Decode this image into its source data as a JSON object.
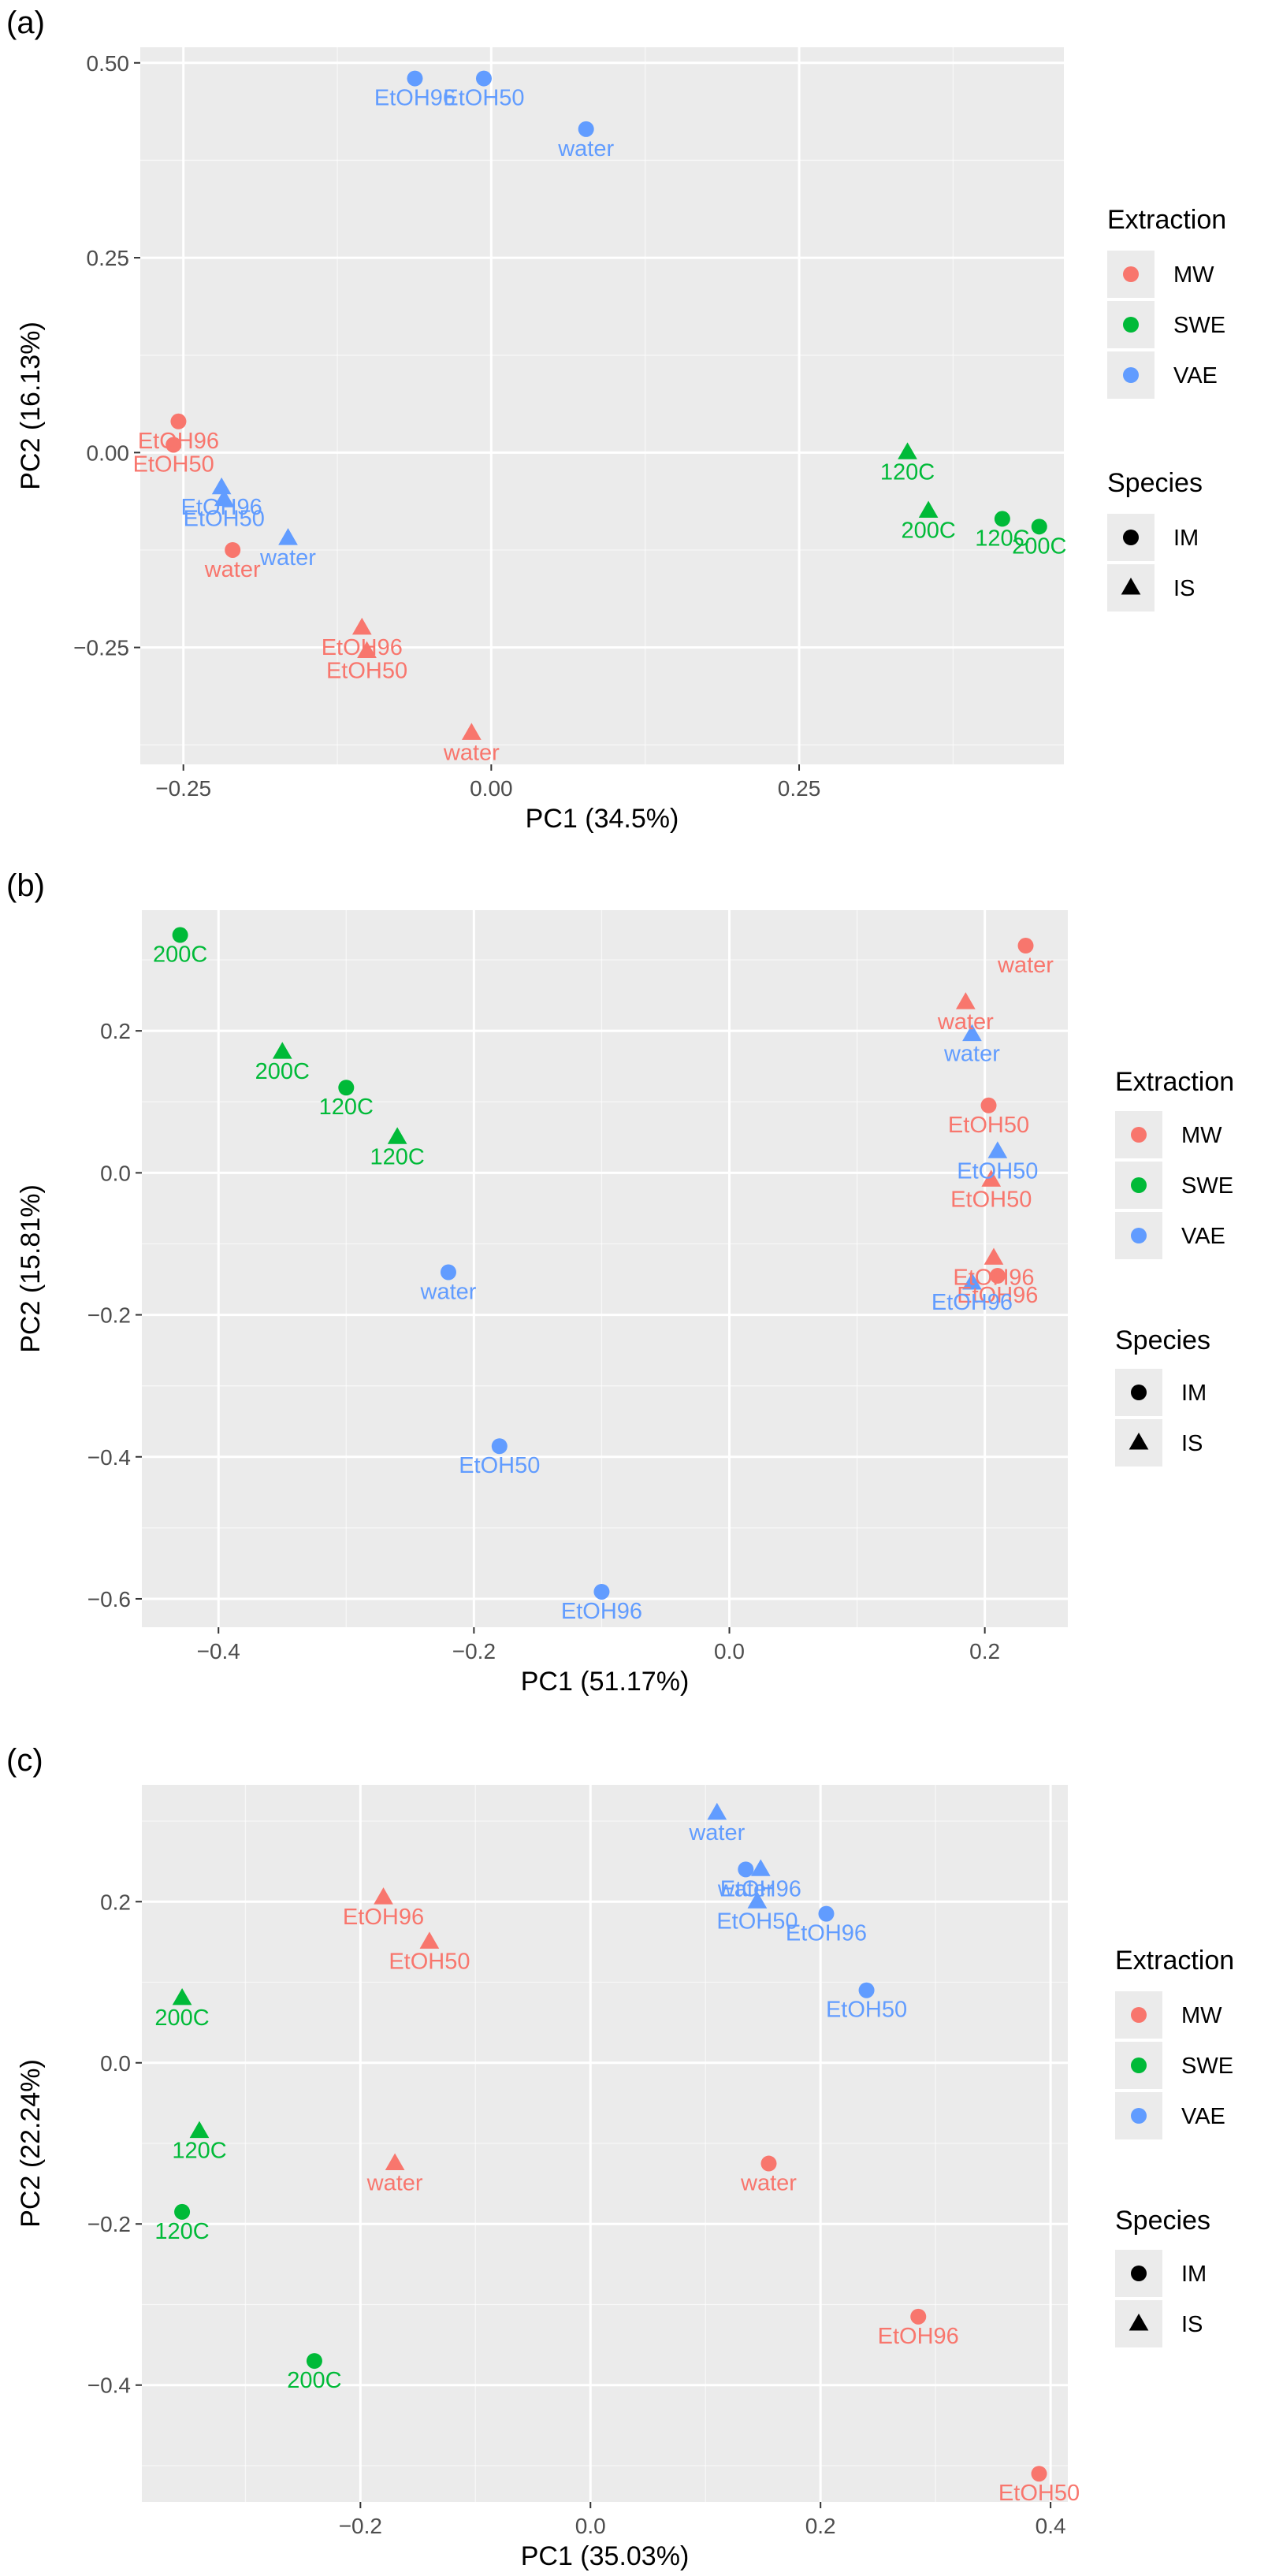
{
  "colors": {
    "MW": "#F8766D",
    "SWE": "#00BA38",
    "VAE": "#619CFF",
    "panel": "#EBEBEB",
    "grid_major": "#FFFFFF",
    "axis_text": "#4D4D4D"
  },
  "chart_data": [
    {
      "panel_label": "(a)",
      "type": "scatter",
      "xlabel": "PC1 (34.5%)",
      "ylabel": "PC2 (16.13%)",
      "xlim": [
        -0.285,
        0.465
      ],
      "ylim": [
        -0.4,
        0.52
      ],
      "xticks": [
        -0.25,
        0,
        0.25
      ],
      "xtick_labels": [
        "−0.25",
        "0.00",
        "0.25"
      ],
      "yticks": [
        -0.25,
        0,
        0.25,
        0.5
      ],
      "ytick_labels": [
        "−0.25",
        "0.00",
        "0.25",
        "0.50"
      ],
      "legend": {
        "color_title": "Extraction",
        "color_items": [
          "MW",
          "SWE",
          "VAE"
        ],
        "shape_title": "Species",
        "shape_items": [
          "IM",
          "IS"
        ]
      },
      "points": [
        {
          "x": -0.062,
          "y": 0.48,
          "extraction": "VAE",
          "species": "IM",
          "label": "EtOH96"
        },
        {
          "x": -0.006,
          "y": 0.48,
          "extraction": "VAE",
          "species": "IM",
          "label": "EtOH50"
        },
        {
          "x": 0.077,
          "y": 0.415,
          "extraction": "VAE",
          "species": "IM",
          "label": "water"
        },
        {
          "x": -0.254,
          "y": 0.04,
          "extraction": "MW",
          "species": "IM",
          "label": "EtOH96"
        },
        {
          "x": -0.258,
          "y": 0.01,
          "extraction": "MW",
          "species": "IM",
          "label": "EtOH50"
        },
        {
          "x": -0.219,
          "y": -0.045,
          "extraction": "VAE",
          "species": "IS",
          "label": "EtOH96"
        },
        {
          "x": -0.217,
          "y": -0.06,
          "extraction": "VAE",
          "species": "IS",
          "label": "EtOH50"
        },
        {
          "x": -0.165,
          "y": -0.11,
          "extraction": "VAE",
          "species": "IS",
          "label": "water"
        },
        {
          "x": -0.21,
          "y": -0.125,
          "extraction": "MW",
          "species": "IM",
          "label": "water"
        },
        {
          "x": -0.105,
          "y": -0.225,
          "extraction": "MW",
          "species": "IS",
          "label": "EtOH96"
        },
        {
          "x": -0.101,
          "y": -0.255,
          "extraction": "MW",
          "species": "IS",
          "label": "EtOH50"
        },
        {
          "x": -0.016,
          "y": -0.36,
          "extraction": "MW",
          "species": "IS",
          "label": "water"
        },
        {
          "x": 0.338,
          "y": 0.0,
          "extraction": "SWE",
          "species": "IS",
          "label": "120C"
        },
        {
          "x": 0.355,
          "y": -0.075,
          "extraction": "SWE",
          "species": "IS",
          "label": "200C"
        },
        {
          "x": 0.415,
          "y": -0.085,
          "extraction": "SWE",
          "species": "IM",
          "label": "120C"
        },
        {
          "x": 0.445,
          "y": -0.095,
          "extraction": "SWE",
          "species": "IM",
          "label": "200C"
        }
      ]
    },
    {
      "panel_label": "(b)",
      "type": "scatter",
      "xlabel": "PC1 (51.17%)",
      "ylabel": "PC2 (15.81%)",
      "xlim": [
        -0.46,
        0.265
      ],
      "ylim": [
        -0.64,
        0.37
      ],
      "xticks": [
        -0.4,
        -0.2,
        0,
        0.2
      ],
      "xtick_labels": [
        "−0.4",
        "−0.2",
        "0.0",
        "0.2"
      ],
      "yticks": [
        -0.6,
        -0.4,
        -0.2,
        0,
        0.2
      ],
      "ytick_labels": [
        "−0.6",
        "−0.4",
        "−0.2",
        "0.0",
        "0.2"
      ],
      "legend": {
        "color_title": "Extraction",
        "color_items": [
          "MW",
          "SWE",
          "VAE"
        ],
        "shape_title": "Species",
        "shape_items": [
          "IM",
          "IS"
        ]
      },
      "points": [
        {
          "x": -0.43,
          "y": 0.335,
          "extraction": "SWE",
          "species": "IM",
          "label": "200C"
        },
        {
          "x": -0.35,
          "y": 0.17,
          "extraction": "SWE",
          "species": "IS",
          "label": "200C"
        },
        {
          "x": -0.3,
          "y": 0.12,
          "extraction": "SWE",
          "species": "IM",
          "label": "120C"
        },
        {
          "x": -0.26,
          "y": 0.05,
          "extraction": "SWE",
          "species": "IS",
          "label": "120C"
        },
        {
          "x": -0.22,
          "y": -0.14,
          "extraction": "VAE",
          "species": "IM",
          "label": "water"
        },
        {
          "x": -0.18,
          "y": -0.385,
          "extraction": "VAE",
          "species": "IM",
          "label": "EtOH50"
        },
        {
          "x": -0.1,
          "y": -0.59,
          "extraction": "VAE",
          "species": "IM",
          "label": "EtOH96"
        },
        {
          "x": 0.232,
          "y": 0.32,
          "extraction": "MW",
          "species": "IM",
          "label": "water"
        },
        {
          "x": 0.185,
          "y": 0.24,
          "extraction": "MW",
          "species": "IS",
          "label": "water"
        },
        {
          "x": 0.19,
          "y": 0.195,
          "extraction": "VAE",
          "species": "IS",
          "label": "water"
        },
        {
          "x": 0.203,
          "y": 0.095,
          "extraction": "MW",
          "species": "IM",
          "label": "EtOH50"
        },
        {
          "x": 0.21,
          "y": 0.03,
          "extraction": "VAE",
          "species": "IS",
          "label": "EtOH50"
        },
        {
          "x": 0.205,
          "y": -0.01,
          "extraction": "MW",
          "species": "IS",
          "label": "EtOH50"
        },
        {
          "x": 0.207,
          "y": -0.12,
          "extraction": "MW",
          "species": "IS",
          "label": "EtOH96"
        },
        {
          "x": 0.21,
          "y": -0.145,
          "extraction": "MW",
          "species": "IM",
          "label": "EtOH96"
        },
        {
          "x": 0.19,
          "y": -0.155,
          "extraction": "VAE",
          "species": "IS",
          "label": "EtOH96"
        }
      ]
    },
    {
      "panel_label": "(c)",
      "type": "scatter",
      "xlabel": "PC1 (35.03%)",
      "ylabel": "PC2 (22.24%)",
      "xlim": [
        -0.39,
        0.415
      ],
      "ylim": [
        -0.545,
        0.345
      ],
      "xticks": [
        -0.2,
        0,
        0.2,
        0.4
      ],
      "xtick_labels": [
        "−0.2",
        "0.0",
        "0.2",
        "0.4"
      ],
      "yticks": [
        -0.4,
        -0.2,
        0,
        0.2
      ],
      "ytick_labels": [
        "−0.4",
        "−0.2",
        "0.0",
        "0.2"
      ],
      "legend": {
        "color_title": "Extraction",
        "color_items": [
          "MW",
          "SWE",
          "VAE"
        ],
        "shape_title": "Species",
        "shape_items": [
          "IM",
          "IS"
        ]
      },
      "points": [
        {
          "x": 0.11,
          "y": 0.31,
          "extraction": "VAE",
          "species": "IS",
          "label": "water"
        },
        {
          "x": 0.135,
          "y": 0.24,
          "extraction": "VAE",
          "species": "IM",
          "label": "water"
        },
        {
          "x": 0.148,
          "y": 0.24,
          "extraction": "VAE",
          "species": "IS",
          "label": "EtOH96"
        },
        {
          "x": 0.145,
          "y": 0.2,
          "extraction": "VAE",
          "species": "IS",
          "label": "EtOH50"
        },
        {
          "x": 0.205,
          "y": 0.185,
          "extraction": "VAE",
          "species": "IM",
          "label": "EtOH96"
        },
        {
          "x": 0.24,
          "y": 0.09,
          "extraction": "VAE",
          "species": "IM",
          "label": "EtOH50"
        },
        {
          "x": -0.18,
          "y": 0.205,
          "extraction": "MW",
          "species": "IS",
          "label": "EtOH96"
        },
        {
          "x": -0.14,
          "y": 0.15,
          "extraction": "MW",
          "species": "IS",
          "label": "EtOH50"
        },
        {
          "x": -0.17,
          "y": -0.125,
          "extraction": "MW",
          "species": "IS",
          "label": "water"
        },
        {
          "x": 0.155,
          "y": -0.125,
          "extraction": "MW",
          "species": "IM",
          "label": "water"
        },
        {
          "x": 0.285,
          "y": -0.315,
          "extraction": "MW",
          "species": "IM",
          "label": "EtOH96"
        },
        {
          "x": 0.39,
          "y": -0.51,
          "extraction": "MW",
          "species": "IM",
          "label": "EtOH50"
        },
        {
          "x": -0.355,
          "y": 0.08,
          "extraction": "SWE",
          "species": "IS",
          "label": "200C"
        },
        {
          "x": -0.34,
          "y": -0.085,
          "extraction": "SWE",
          "species": "IS",
          "label": "120C"
        },
        {
          "x": -0.355,
          "y": -0.185,
          "extraction": "SWE",
          "species": "IM",
          "label": "120C"
        },
        {
          "x": -0.24,
          "y": -0.37,
          "extraction": "SWE",
          "species": "IM",
          "label": "200C"
        }
      ]
    }
  ]
}
